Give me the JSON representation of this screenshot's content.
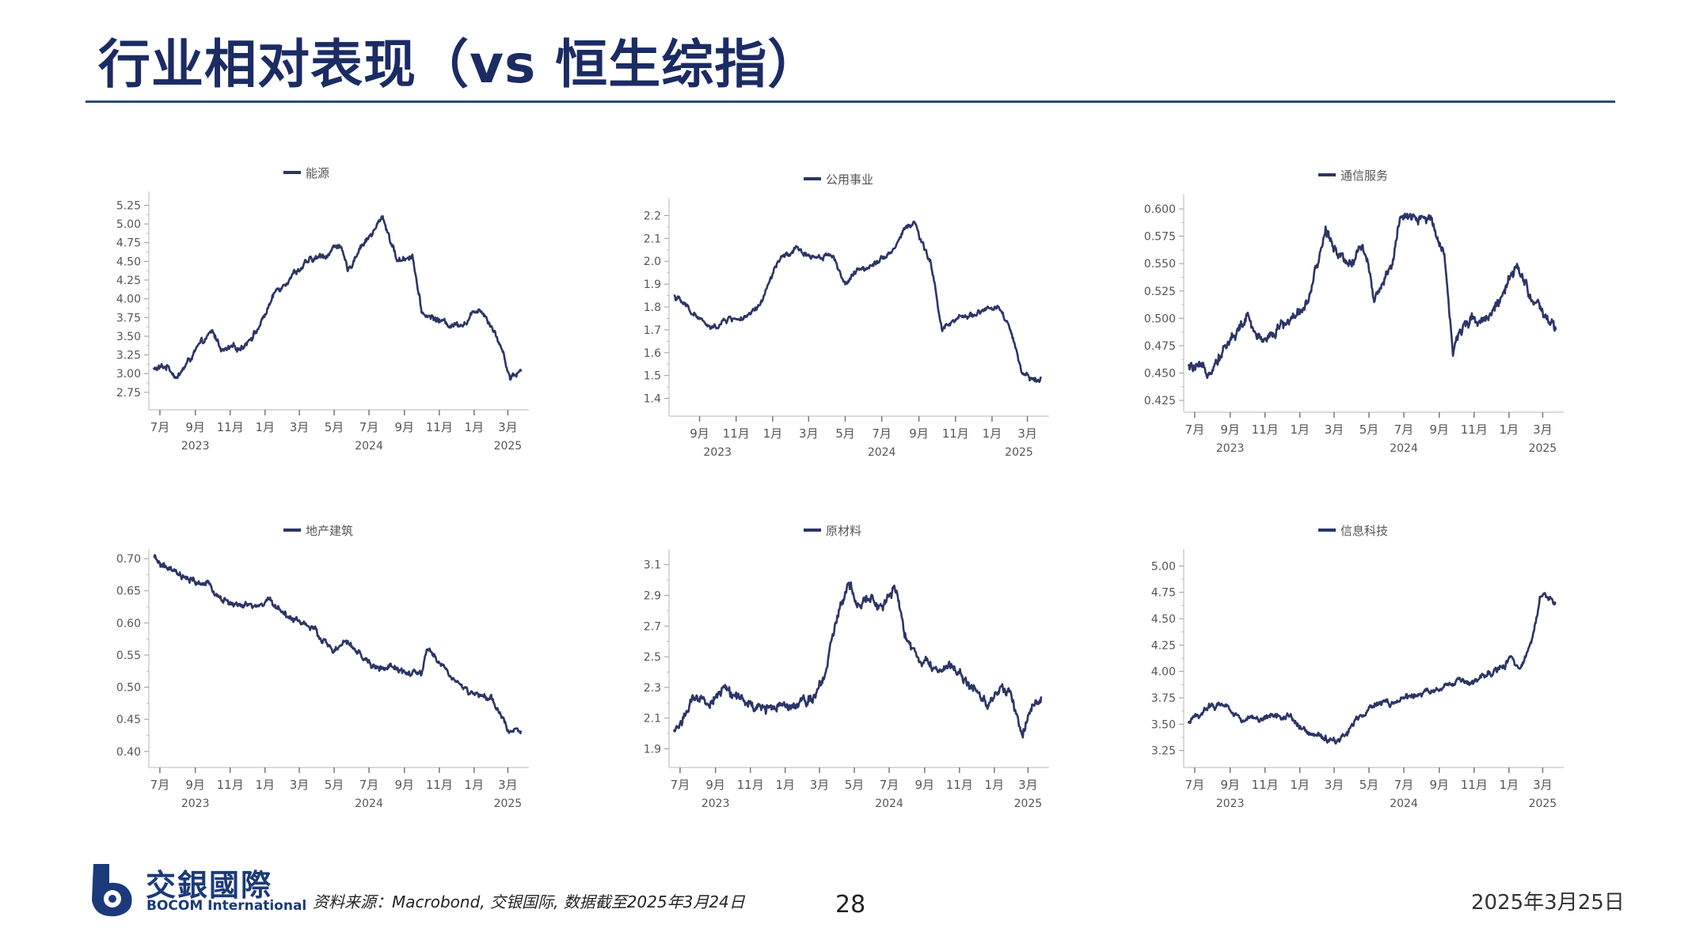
{
  "title": "行业相对表现（vs 恒生综指）",
  "colors": {
    "accent": "#1b2c64",
    "series": "#2c3566",
    "rule": "#2f4878"
  },
  "footer": {
    "logo_cn": "交銀國際",
    "logo_en": "BOCOM International",
    "source": "资料来源：Macrobond, 交银国际, 数据截至2025年3月24日",
    "page_number": "28",
    "date": "2025年3月25日"
  },
  "chart_data": [
    {
      "type": "line",
      "legend": "能源",
      "x_range": [
        "2023-06-20",
        "2025-03-24"
      ],
      "month_ticks": [
        "7月",
        "9月",
        "11月",
        "1月",
        "3月",
        "5月",
        "7月",
        "9月",
        "11月",
        "1月",
        "3月"
      ],
      "month_tick_dates": [
        "2023-07-01",
        "2023-09-01",
        "2023-11-01",
        "2024-01-01",
        "2024-03-01",
        "2024-05-01",
        "2024-07-01",
        "2024-09-01",
        "2024-11-01",
        "2025-01-01",
        "2025-03-01"
      ],
      "years": [
        {
          "label": "2023",
          "date": "2023-09-01"
        },
        {
          "label": "2024",
          "date": "2024-07-01"
        },
        {
          "label": "2025",
          "date": "2025-03-01"
        }
      ],
      "ylim": [
        2.6,
        5.35
      ],
      "yticks": [
        2.75,
        3.0,
        3.25,
        3.5,
        3.75,
        4.0,
        4.25,
        4.5,
        4.75,
        5.0,
        5.25
      ],
      "tick_decimals": 2,
      "series": [
        {
          "x": [
            "2023-06-20",
            "2023-07-15",
            "2023-08-01",
            "2023-09-01",
            "2023-10-01",
            "2023-10-20",
            "2023-11-20",
            "2023-12-20",
            "2024-01-20",
            "2024-02-20",
            "2024-03-20",
            "2024-04-20",
            "2024-05-10",
            "2024-05-25",
            "2024-06-15",
            "2024-07-10",
            "2024-07-25",
            "2024-08-20",
            "2024-09-15",
            "2024-10-01",
            "2024-10-20",
            "2024-11-20",
            "2024-12-20",
            "2025-01-10",
            "2025-02-01",
            "2025-02-20",
            "2025-03-05",
            "2025-03-24"
          ],
          "values": [
            3.05,
            3.1,
            2.95,
            3.3,
            3.55,
            3.3,
            3.35,
            3.6,
            4.1,
            4.35,
            4.5,
            4.6,
            4.75,
            4.35,
            4.7,
            4.9,
            5.1,
            4.5,
            4.6,
            3.8,
            3.75,
            3.65,
            3.7,
            3.9,
            3.65,
            3.3,
            2.95,
            3.05
          ],
          "noise": 0.05
        }
      ]
    },
    {
      "type": "line",
      "legend": "公用事业",
      "x_range": [
        "2023-07-20",
        "2025-03-24"
      ],
      "month_ticks": [
        "9月",
        "11月",
        "1月",
        "3月",
        "5月",
        "7月",
        "9月",
        "11月",
        "1月",
        "3月"
      ],
      "month_tick_dates": [
        "2023-09-01",
        "2023-11-01",
        "2024-01-01",
        "2024-03-01",
        "2024-05-01",
        "2024-07-01",
        "2024-09-01",
        "2024-11-01",
        "2025-01-01",
        "2025-03-01"
      ],
      "years": [
        {
          "label": "2023",
          "date": "2023-10-01"
        },
        {
          "label": "2024",
          "date": "2024-07-01"
        },
        {
          "label": "2025",
          "date": "2025-02-15"
        }
      ],
      "ylim": [
        1.35,
        2.25
      ],
      "yticks": [
        1.4,
        1.5,
        1.6,
        1.7,
        1.8,
        1.9,
        2.0,
        2.1,
        2.2
      ],
      "tick_decimals": 1,
      "series": [
        {
          "x": [
            "2023-07-20",
            "2023-08-10",
            "2023-09-01",
            "2023-09-20",
            "2023-10-20",
            "2023-11-20",
            "2023-12-10",
            "2024-01-10",
            "2024-02-10",
            "2024-03-10",
            "2024-04-10",
            "2024-05-01",
            "2024-05-20",
            "2024-06-20",
            "2024-07-20",
            "2024-08-10",
            "2024-08-25",
            "2024-09-10",
            "2024-09-20",
            "2024-10-10",
            "2024-11-10",
            "2024-12-10",
            "2025-01-10",
            "2025-02-01",
            "2025-02-20",
            "2025-03-05",
            "2025-03-24"
          ],
          "values": [
            1.85,
            1.8,
            1.75,
            1.7,
            1.75,
            1.75,
            1.8,
            2.0,
            2.05,
            2.02,
            2.03,
            1.9,
            1.95,
            2.0,
            2.05,
            2.15,
            2.17,
            2.05,
            2.0,
            1.7,
            1.75,
            1.78,
            1.8,
            1.7,
            1.5,
            1.48,
            1.5
          ],
          "noise": 0.015
        }
      ]
    },
    {
      "type": "line",
      "legend": "通信服务",
      "x_range": [
        "2023-06-20",
        "2025-03-24"
      ],
      "month_ticks": [
        "7月",
        "9月",
        "11月",
        "1月",
        "3月",
        "5月",
        "7月",
        "9月",
        "11月",
        "1月",
        "3月"
      ],
      "month_tick_dates": [
        "2023-07-01",
        "2023-09-01",
        "2023-11-01",
        "2024-01-01",
        "2024-03-01",
        "2024-05-01",
        "2024-07-01",
        "2024-09-01",
        "2024-11-01",
        "2025-01-01",
        "2025-03-01"
      ],
      "years": [
        {
          "label": "2023",
          "date": "2023-09-01"
        },
        {
          "label": "2024",
          "date": "2024-07-01"
        },
        {
          "label": "2025",
          "date": "2025-03-01"
        }
      ],
      "ylim": [
        0.42,
        0.608
      ],
      "yticks": [
        0.425,
        0.45,
        0.475,
        0.5,
        0.525,
        0.55,
        0.575,
        0.6
      ],
      "tick_decimals": 3,
      "series": [
        {
          "x": [
            "2023-06-20",
            "2023-07-20",
            "2023-08-10",
            "2023-09-01",
            "2023-10-01",
            "2023-10-20",
            "2023-11-20",
            "2023-12-20",
            "2024-01-20",
            "2024-02-15",
            "2024-03-10",
            "2024-04-01",
            "2024-04-20",
            "2024-05-10",
            "2024-06-10",
            "2024-06-25",
            "2024-07-20",
            "2024-08-20",
            "2024-09-10",
            "2024-09-25",
            "2024-10-20",
            "2024-11-20",
            "2024-12-20",
            "2025-01-15",
            "2025-02-10",
            "2025-03-01",
            "2025-03-24"
          ],
          "values": [
            0.455,
            0.45,
            0.465,
            0.48,
            0.5,
            0.48,
            0.49,
            0.5,
            0.52,
            0.58,
            0.56,
            0.55,
            0.57,
            0.52,
            0.55,
            0.59,
            0.59,
            0.59,
            0.56,
            0.47,
            0.5,
            0.5,
            0.52,
            0.545,
            0.52,
            0.5,
            0.49
          ],
          "noise": 0.006
        }
      ]
    },
    {
      "type": "line",
      "legend": "地产建筑",
      "x_range": [
        "2023-06-20",
        "2025-03-24"
      ],
      "month_ticks": [
        "7月",
        "9月",
        "11月",
        "1月",
        "3月",
        "5月",
        "7月",
        "9月",
        "11月",
        "1月",
        "3月"
      ],
      "month_tick_dates": [
        "2023-07-01",
        "2023-09-01",
        "2023-11-01",
        "2024-01-01",
        "2024-03-01",
        "2024-05-01",
        "2024-07-01",
        "2024-09-01",
        "2024-11-01",
        "2025-01-01",
        "2025-03-01"
      ],
      "years": [
        {
          "label": "2023",
          "date": "2023-09-01"
        },
        {
          "label": "2024",
          "date": "2024-07-01"
        },
        {
          "label": "2025",
          "date": "2025-03-01"
        }
      ],
      "ylim": [
        0.385,
        0.705
      ],
      "yticks": [
        0.4,
        0.45,
        0.5,
        0.55,
        0.6,
        0.65,
        0.7
      ],
      "tick_decimals": 2,
      "series": [
        {
          "x": [
            "2023-06-20",
            "2023-07-20",
            "2023-08-20",
            "2023-09-20",
            "2023-10-20",
            "2023-11-20",
            "2023-12-20",
            "2024-01-10",
            "2024-02-10",
            "2024-03-10",
            "2024-04-10",
            "2024-05-01",
            "2024-05-20",
            "2024-06-10",
            "2024-07-10",
            "2024-08-10",
            "2024-09-10",
            "2024-10-01",
            "2024-10-10",
            "2024-11-10",
            "2024-12-10",
            "2025-01-10",
            "2025-02-01",
            "2025-02-20",
            "2025-03-01",
            "2025-03-24"
          ],
          "values": [
            0.7,
            0.68,
            0.665,
            0.66,
            0.635,
            0.625,
            0.625,
            0.635,
            0.61,
            0.6,
            0.575,
            0.555,
            0.57,
            0.555,
            0.53,
            0.53,
            0.52,
            0.52,
            0.56,
            0.53,
            0.5,
            0.485,
            0.48,
            0.45,
            0.435,
            0.435
          ],
          "noise": 0.006
        }
      ]
    },
    {
      "type": "line",
      "legend": "原材料",
      "x_range": [
        "2023-06-20",
        "2025-03-24"
      ],
      "month_ticks": [
        "7月",
        "9月",
        "11月",
        "1月",
        "3月",
        "5月",
        "7月",
        "9月",
        "11月",
        "1月",
        "3月"
      ],
      "month_tick_dates": [
        "2023-07-01",
        "2023-09-01",
        "2023-11-01",
        "2024-01-01",
        "2024-03-01",
        "2024-05-01",
        "2024-07-01",
        "2024-09-01",
        "2024-11-01",
        "2025-01-01",
        "2025-03-01"
      ],
      "years": [
        {
          "label": "2023",
          "date": "2023-09-01"
        },
        {
          "label": "2024",
          "date": "2024-07-01"
        },
        {
          "label": "2025",
          "date": "2025-03-01"
        }
      ],
      "ylim": [
        1.82,
        3.16
      ],
      "yticks": [
        1.9,
        2.1,
        2.3,
        2.5,
        2.7,
        2.9,
        3.1
      ],
      "tick_decimals": 1,
      "series": [
        {
          "x": [
            "2023-06-20",
            "2023-07-20",
            "2023-08-20",
            "2023-09-20",
            "2023-10-20",
            "2023-11-20",
            "2023-12-20",
            "2024-01-20",
            "2024-02-20",
            "2024-03-10",
            "2024-04-01",
            "2024-04-20",
            "2024-05-10",
            "2024-06-01",
            "2024-06-20",
            "2024-07-10",
            "2024-08-01",
            "2024-08-20",
            "2024-09-20",
            "2024-10-20",
            "2024-11-20",
            "2024-12-20",
            "2025-01-15",
            "2025-02-01",
            "2025-02-20",
            "2025-03-05",
            "2025-03-24"
          ],
          "values": [
            2.0,
            2.2,
            2.2,
            2.3,
            2.2,
            2.15,
            2.2,
            2.2,
            2.25,
            2.4,
            2.75,
            3.0,
            2.85,
            2.9,
            2.8,
            2.95,
            2.6,
            2.5,
            2.4,
            2.45,
            2.3,
            2.2,
            2.3,
            2.25,
            2.0,
            2.15,
            2.25
          ],
          "noise": 0.04
        }
      ]
    },
    {
      "type": "line",
      "legend": "信息科技",
      "x_range": [
        "2023-06-20",
        "2025-03-24"
      ],
      "month_ticks": [
        "7月",
        "9月",
        "11月",
        "1月",
        "3月",
        "5月",
        "7月",
        "9月",
        "11月",
        "1月",
        "3月"
      ],
      "month_tick_dates": [
        "2023-07-01",
        "2023-09-01",
        "2023-11-01",
        "2024-01-01",
        "2024-03-01",
        "2024-05-01",
        "2024-07-01",
        "2024-09-01",
        "2024-11-01",
        "2025-01-01",
        "2025-03-01"
      ],
      "years": [
        {
          "label": "2023",
          "date": "2023-09-01"
        },
        {
          "label": "2024",
          "date": "2024-07-01"
        },
        {
          "label": "2025",
          "date": "2025-03-01"
        }
      ],
      "ylim": [
        3.15,
        5.1
      ],
      "yticks": [
        3.25,
        3.5,
        3.75,
        4.0,
        4.25,
        4.5,
        4.75,
        5.0
      ],
      "tick_decimals": 2,
      "series": [
        {
          "x": [
            "2023-06-20",
            "2023-07-20",
            "2023-08-20",
            "2023-09-20",
            "2023-10-20",
            "2023-11-20",
            "2023-12-20",
            "2024-01-20",
            "2024-02-20",
            "2024-03-10",
            "2024-04-10",
            "2024-05-10",
            "2024-06-10",
            "2024-07-10",
            "2024-08-10",
            "2024-09-10",
            "2024-10-10",
            "2024-11-10",
            "2024-12-10",
            "2025-01-01",
            "2025-01-20",
            "2025-02-10",
            "2025-02-25",
            "2025-03-10",
            "2025-03-24"
          ],
          "values": [
            3.5,
            3.65,
            3.7,
            3.55,
            3.55,
            3.6,
            3.55,
            3.4,
            3.35,
            3.35,
            3.55,
            3.7,
            3.7,
            3.75,
            3.8,
            3.85,
            3.9,
            3.9,
            4.0,
            4.1,
            4.05,
            4.3,
            4.7,
            4.7,
            4.65
          ],
          "noise": 0.035
        }
      ]
    }
  ]
}
